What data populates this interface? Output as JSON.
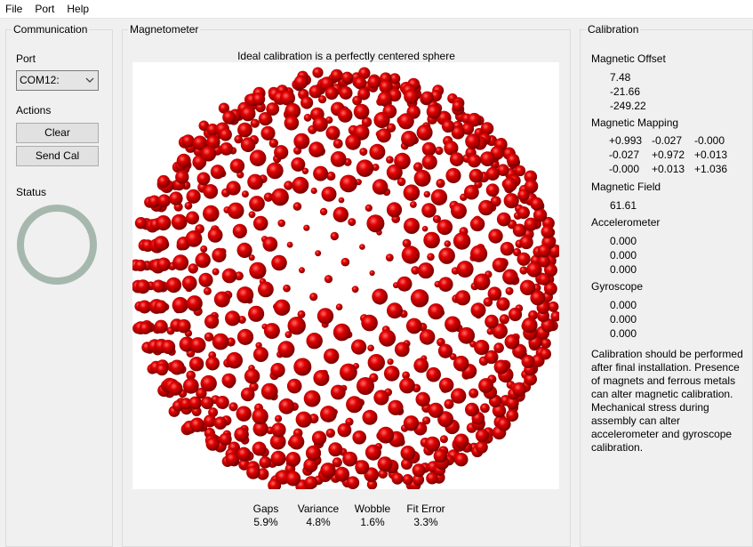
{
  "menu": [
    "File",
    "Port",
    "Help"
  ],
  "communication": {
    "title": "Communication",
    "port_label": "Port",
    "port_value": "COM12:",
    "actions_label": "Actions",
    "clear_label": "Clear",
    "send_cal_label": "Send Cal",
    "status_label": "Status",
    "status_color": "#a6b8ad"
  },
  "magnetometer": {
    "title": "Magnetometer",
    "plot_caption": "Ideal calibration is a perfectly centered sphere",
    "point_color": "#e00000",
    "stats": [
      {
        "label": "Gaps",
        "value": "5.9%"
      },
      {
        "label": "Variance",
        "value": "4.8%"
      },
      {
        "label": "Wobble",
        "value": "1.6%"
      },
      {
        "label": "Fit Error",
        "value": "3.3%"
      }
    ]
  },
  "calibration": {
    "title": "Calibration",
    "offset_label": "Magnetic Offset",
    "offset": [
      "7.48",
      "-21.66",
      "-249.22"
    ],
    "mapping_label": "Magnetic Mapping",
    "mapping": [
      [
        "+0.993",
        "-0.027",
        "-0.000"
      ],
      [
        "-0.027",
        "+0.972",
        "+0.013"
      ],
      [
        "-0.000",
        "+0.013",
        "+1.036"
      ]
    ],
    "field_label": "Magnetic Field",
    "field": "61.61",
    "accel_label": "Accelerometer",
    "accel": [
      "0.000",
      "0.000",
      "0.000"
    ],
    "gyro_label": "Gyroscope",
    "gyro": [
      "0.000",
      "0.000",
      "0.000"
    ],
    "note": "Calibration should be performed after final installation.  Presence of magnets and ferrous metals can alter magnetic calibration. Mechanical stress during assembly can alter accelerometer and gyroscope calibration."
  }
}
